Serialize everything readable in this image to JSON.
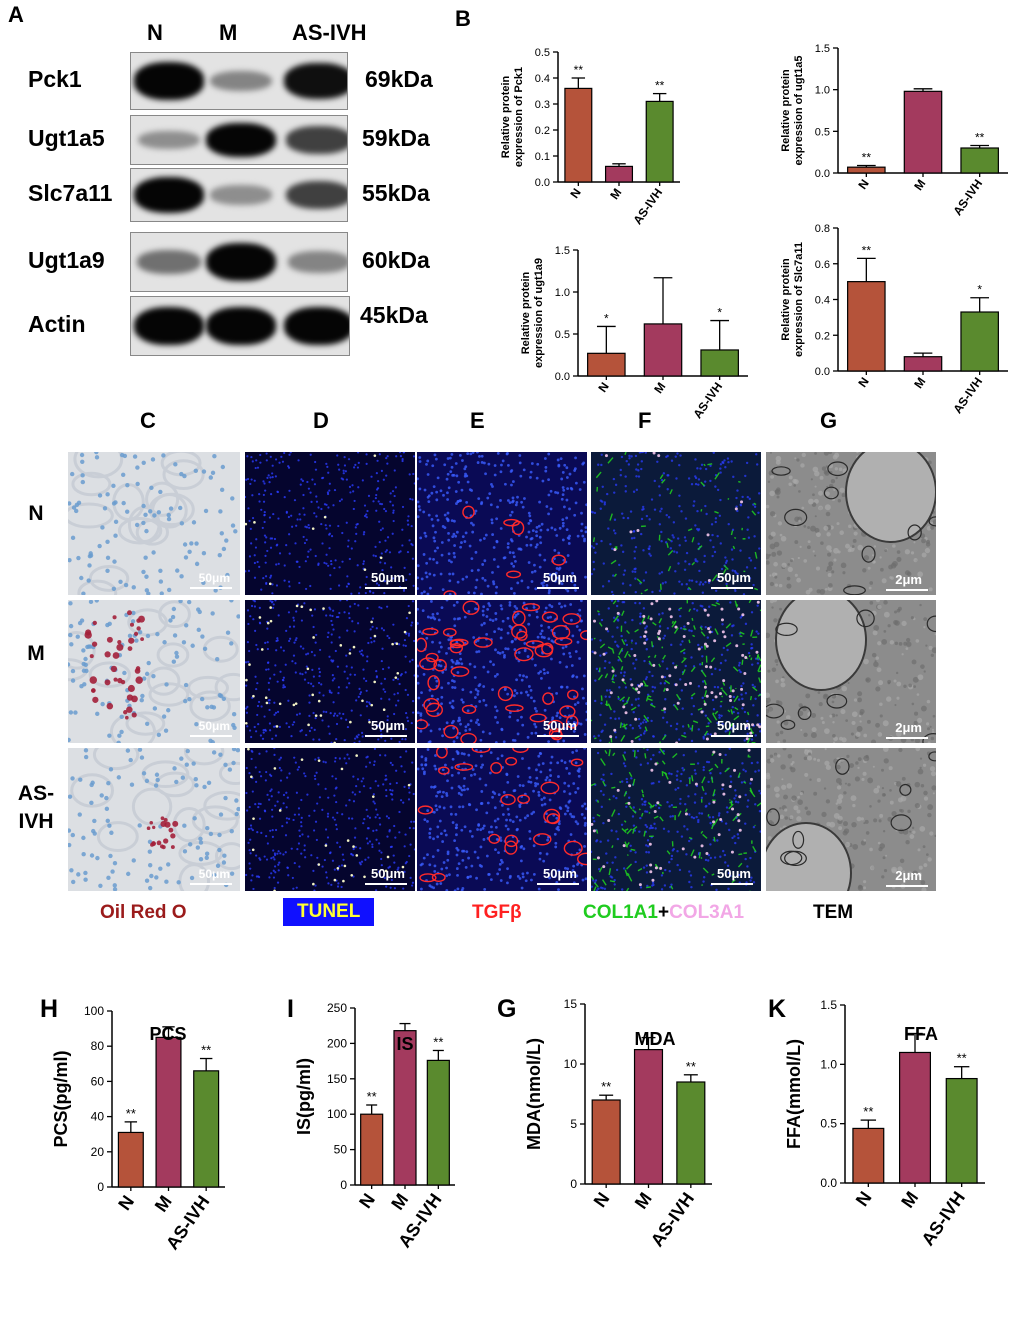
{
  "panels": {
    "a": "A",
    "b": "B",
    "c": "C",
    "d": "D",
    "e": "E",
    "f": "F",
    "g": "G",
    "h": "H",
    "i": "I",
    "g2": "G",
    "k": "K"
  },
  "western_blot": {
    "lanes": [
      "N",
      "M",
      "AS-IVH"
    ],
    "proteins": [
      {
        "name": "Pck1",
        "size": "69kDa",
        "intensity": [
          1.0,
          0.35,
          0.95
        ]
      },
      {
        "name": "Ugt1a5",
        "size": "59kDa",
        "intensity": [
          0.3,
          1.0,
          0.7
        ]
      },
      {
        "name": "Slc7a11",
        "size": "55kDa",
        "intensity": [
          1.0,
          0.3,
          0.7
        ]
      },
      {
        "name": "Ugt1a9",
        "size": "60kDa",
        "intensity": [
          0.45,
          1.0,
          0.35
        ]
      },
      {
        "name": "Actin",
        "size": "45kDa",
        "intensity": [
          1.0,
          1.0,
          1.0
        ]
      }
    ]
  },
  "histology": {
    "rows": [
      "N",
      "M",
      "AS-IVH"
    ],
    "columns": [
      {
        "id": "C",
        "stain": "Oil Red O",
        "stain_color": "#9b1b1b",
        "scale": "50μm",
        "bg": "#dcdfe3"
      },
      {
        "id": "D",
        "stain": "TUNEL",
        "stain_color": "#ffff33",
        "label_bg": "#1010ff",
        "scale": "50μm",
        "bg": "#05052e"
      },
      {
        "id": "E",
        "stain": "TGFβ",
        "stain_color": "#ff2020",
        "scale": "50μm",
        "bg": "#0a0a55"
      },
      {
        "id": "F",
        "stain_parts": [
          "COL1A1",
          "+",
          "COL3A1"
        ],
        "stain_part_colors": [
          "#1fcc1f",
          "#000000",
          "#f2a7e6"
        ],
        "scale": "50μm",
        "bg": "#0b1a3a"
      },
      {
        "id": "G",
        "stain": "TEM",
        "stain_color": "#000000",
        "scale": "2μm",
        "bg": "#8c8c8c"
      }
    ]
  },
  "colors": {
    "N": "#b5533a",
    "M": "#a33a5e",
    "AS-IVH": "#5a8a2e"
  },
  "chart_data": [
    {
      "id": "B1",
      "type": "bar",
      "categories": [
        "N",
        "M",
        "AS-IVH"
      ],
      "values": [
        0.36,
        0.06,
        0.31
      ],
      "errors": [
        0.04,
        0.01,
        0.03
      ],
      "significance": [
        "**",
        "",
        "**"
      ],
      "ylabel": [
        "Relative protein",
        "expression of Pck1"
      ],
      "ylim": [
        0,
        0.5
      ],
      "yticks": [
        "0.0",
        "0.1",
        "0.2",
        "0.3",
        "0.4",
        "0.5"
      ]
    },
    {
      "id": "B2",
      "type": "bar",
      "categories": [
        "N",
        "M",
        "AS-IVH"
      ],
      "values": [
        0.07,
        0.98,
        0.3
      ],
      "errors": [
        0.02,
        0.03,
        0.03
      ],
      "significance": [
        "**",
        "",
        "**"
      ],
      "ylabel": [
        "Relative protein",
        "expression of ugt1a5"
      ],
      "ylim": [
        0,
        1.5
      ],
      "yticks": [
        "0.0",
        "0.5",
        "1.0",
        "1.5"
      ]
    },
    {
      "id": "B3",
      "type": "bar",
      "categories": [
        "N",
        "M",
        "AS-IVH"
      ],
      "values": [
        0.27,
        0.62,
        0.31
      ],
      "errors": [
        0.32,
        0.55,
        0.35
      ],
      "significance": [
        "*",
        "",
        "*"
      ],
      "ylabel": [
        "Relative protein",
        "expression of ugt1a9"
      ],
      "ylim": [
        0,
        1.5
      ],
      "yticks": [
        "0.0",
        "0.5",
        "1.0",
        "1.5"
      ]
    },
    {
      "id": "B4",
      "type": "bar",
      "categories": [
        "N",
        "M",
        "AS-IVH"
      ],
      "values": [
        0.5,
        0.08,
        0.33
      ],
      "errors": [
        0.13,
        0.02,
        0.08
      ],
      "significance": [
        "**",
        "",
        "*"
      ],
      "ylabel": [
        "Relative protein",
        "expression of  Slc7a11"
      ],
      "ylim": [
        0,
        0.8
      ],
      "yticks": [
        "0.0",
        "0.2",
        "0.4",
        "0.6",
        "0.8"
      ]
    },
    {
      "id": "H",
      "type": "bar",
      "title": "PCS",
      "categories": [
        "N",
        "M",
        "AS-IVH"
      ],
      "values": [
        31,
        85,
        66
      ],
      "errors": [
        6,
        6,
        7
      ],
      "significance": [
        "**",
        "",
        "**"
      ],
      "ylabel": [
        "PCS(pg/ml)"
      ],
      "ylim": [
        0,
        100
      ],
      "yticks": [
        "0",
        "20",
        "40",
        "60",
        "80",
        "100"
      ]
    },
    {
      "id": "I",
      "type": "bar",
      "title": "IS",
      "categories": [
        "N",
        "M",
        "AS-IVH"
      ],
      "values": [
        100,
        218,
        176
      ],
      "errors": [
        13,
        10,
        14
      ],
      "significance": [
        "**",
        "",
        "**"
      ],
      "ylabel": [
        "IS(pg/ml)"
      ],
      "ylim": [
        0,
        250
      ],
      "yticks": [
        "0",
        "50",
        "100",
        "150",
        "200",
        "250"
      ]
    },
    {
      "id": "G2",
      "type": "bar",
      "title": "MDA",
      "categories": [
        "N",
        "M",
        "AS-IVH"
      ],
      "values": [
        7.0,
        11.2,
        8.5
      ],
      "errors": [
        0.4,
        1.0,
        0.6
      ],
      "significance": [
        "**",
        "",
        "**"
      ],
      "ylabel": [
        "MDA(nmol/L)"
      ],
      "ylim": [
        0,
        15
      ],
      "yticks": [
        "0",
        "5",
        "10",
        "15"
      ]
    },
    {
      "id": "K",
      "type": "bar",
      "title": "FFA",
      "categories": [
        "N",
        "M",
        "AS-IVH"
      ],
      "values": [
        0.46,
        1.1,
        0.88
      ],
      "errors": [
        0.07,
        0.16,
        0.1
      ],
      "significance": [
        "**",
        "",
        "**"
      ],
      "ylabel": [
        "FFA(mmol/L)"
      ],
      "ylim": [
        0,
        1.5
      ],
      "yticks": [
        "0.0",
        "0.5",
        "1.0",
        "1.5"
      ]
    }
  ]
}
